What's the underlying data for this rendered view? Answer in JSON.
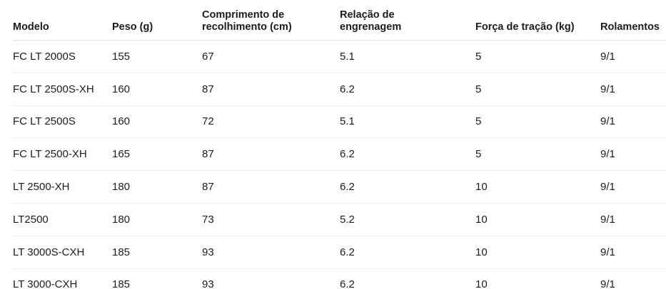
{
  "colors": {
    "background": "#ffffff",
    "text": "#1c1c1c",
    "header_divider": "#e3e3e3",
    "row_divider": "#ededed"
  },
  "table": {
    "columns": [
      {
        "id": "modelo",
        "label": "Modelo"
      },
      {
        "id": "peso",
        "label": "Peso (g)"
      },
      {
        "id": "comprimento",
        "label": "Comprimento de recolhimento (cm)"
      },
      {
        "id": "relacao",
        "label": "Relação de engrenagem"
      },
      {
        "id": "forca",
        "label": "Força de tração (kg)"
      },
      {
        "id": "rolamentos",
        "label": "Rolamentos"
      }
    ],
    "rows": [
      {
        "cells": [
          "FC LT 2000S",
          "155",
          "67",
          "5.1",
          "5",
          "9/1"
        ]
      },
      {
        "cells": [
          "FC LT 2500S-XH",
          "160",
          "87",
          "6.2",
          "5",
          "9/1"
        ]
      },
      {
        "cells": [
          "FC LT 2500S",
          "160",
          "72",
          "5.1",
          "5",
          "9/1"
        ]
      },
      {
        "cells": [
          "FC LT 2500-XH",
          "165",
          "87",
          "6.2",
          "5",
          "9/1"
        ]
      },
      {
        "cells": [
          "LT 2500-XH",
          "180",
          "87",
          "6.2",
          "10",
          "9/1"
        ]
      },
      {
        "cells": [
          "LT2500",
          "180",
          "73",
          "5.2",
          "10",
          "9/1"
        ]
      },
      {
        "cells": [
          "LT 3000S-CXH",
          "185",
          "93",
          "6.2",
          "10",
          "9/1"
        ]
      },
      {
        "cells": [
          "LT 3000-CXH",
          "185",
          "93",
          "6.2",
          "10",
          "9/1"
        ]
      }
    ]
  }
}
